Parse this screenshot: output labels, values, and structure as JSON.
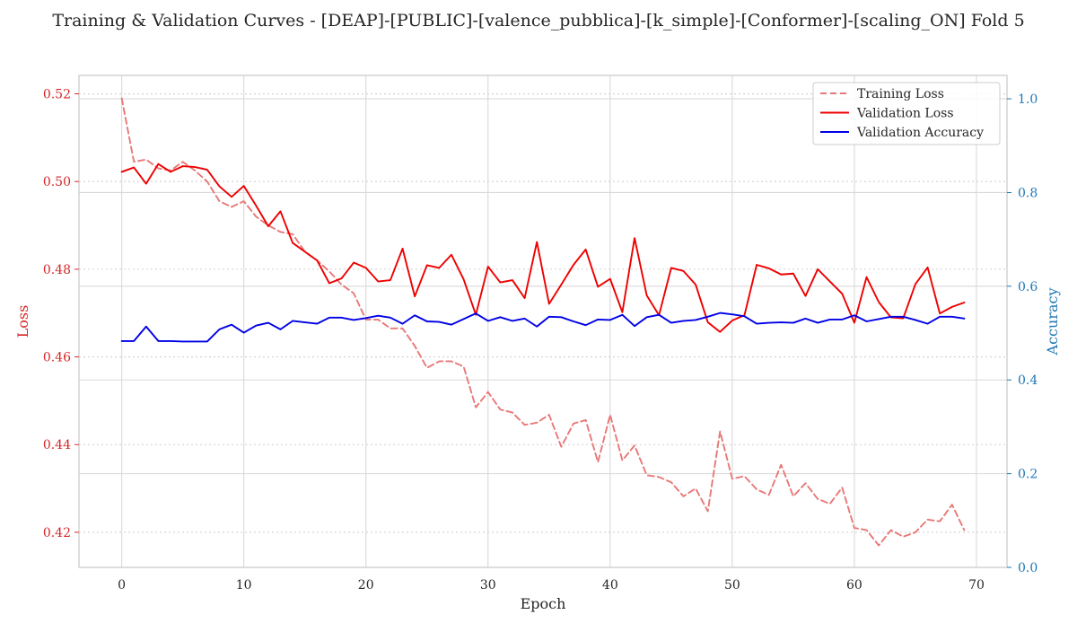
{
  "chart_data": {
    "type": "line",
    "title": "Training & Validation Curves - [DEAP]-[PUBLIC]-[valence_pubblica]-[k_simple]-[Conformer]-[scaling_ON] Fold 5",
    "xlabel": "Epoch",
    "ylabel": "Loss",
    "y2label": "Accuracy",
    "xlim": [
      -3.5,
      72.5
    ],
    "ylim": [
      0.412,
      0.5242
    ],
    "y2lim": [
      0.0,
      1.05
    ],
    "xticks": [
      "0",
      "10",
      "20",
      "30",
      "40",
      "50",
      "60",
      "70"
    ],
    "yticks": [
      "0.42",
      "0.44",
      "0.46",
      "0.48",
      "0.50",
      "0.52"
    ],
    "y2ticks": [
      "0.0",
      "0.2",
      "0.4",
      "0.6",
      "0.8",
      "1.0"
    ],
    "grid": true,
    "legend_position": "top-right",
    "colors": {
      "training_loss": "#e87878",
      "validation_loss": "#ee0000",
      "validation_accuracy": "#0000e6",
      "left_axis": "#d62728",
      "right_axis": "#1f77b4"
    },
    "x": [
      0,
      1,
      2,
      3,
      4,
      5,
      6,
      7,
      8,
      9,
      10,
      11,
      12,
      13,
      14,
      15,
      16,
      17,
      18,
      19,
      20,
      21,
      22,
      23,
      24,
      25,
      26,
      27,
      28,
      29,
      30,
      31,
      32,
      33,
      34,
      35,
      36,
      37,
      38,
      39,
      40,
      41,
      42,
      43,
      44,
      45,
      46,
      47,
      48,
      49,
      50,
      51,
      52,
      53,
      54,
      55,
      56,
      57,
      58,
      59,
      60,
      61,
      62,
      63,
      64,
      65,
      66,
      67,
      68,
      69
    ],
    "series": [
      {
        "name": "Training Loss",
        "axis": "left",
        "style": "dashed",
        "values": [
          0.519,
          0.5045,
          0.505,
          0.503,
          0.5025,
          0.5045,
          0.5025,
          0.5,
          0.4955,
          0.4942,
          0.4955,
          0.492,
          0.49,
          0.4885,
          0.488,
          0.484,
          0.482,
          0.4795,
          0.4765,
          0.4745,
          0.4685,
          0.4685,
          0.4665,
          0.4665,
          0.4625,
          0.4575,
          0.459,
          0.459,
          0.4578,
          0.4485,
          0.452,
          0.448,
          0.4473,
          0.4445,
          0.445,
          0.4468,
          0.4395,
          0.4448,
          0.4456,
          0.436,
          0.4468,
          0.4364,
          0.4398,
          0.433,
          0.4326,
          0.4314,
          0.4282,
          0.43,
          0.4248,
          0.443,
          0.4322,
          0.4328,
          0.4298,
          0.4285,
          0.4354,
          0.4282,
          0.4312,
          0.4276,
          0.4265,
          0.4302,
          0.421,
          0.4205,
          0.417,
          0.4205,
          0.419,
          0.42,
          0.4229,
          0.4225,
          0.4263,
          0.4205
        ]
      },
      {
        "name": "Validation Loss",
        "axis": "left",
        "style": "solid",
        "values": [
          0.5022,
          0.5032,
          0.4995,
          0.504,
          0.5022,
          0.5035,
          0.5033,
          0.5027,
          0.4989,
          0.4965,
          0.499,
          0.4945,
          0.4898,
          0.4932,
          0.486,
          0.484,
          0.482,
          0.4768,
          0.4779,
          0.4815,
          0.4803,
          0.4772,
          0.4775,
          0.4847,
          0.4738,
          0.4809,
          0.4803,
          0.4833,
          0.4777,
          0.4696,
          0.4806,
          0.477,
          0.4775,
          0.4734,
          0.4862,
          0.4721,
          0.4765,
          0.481,
          0.4845,
          0.476,
          0.4778,
          0.4702,
          0.4871,
          0.474,
          0.4695,
          0.4803,
          0.4796,
          0.4765,
          0.4679,
          0.4657,
          0.4683,
          0.4695,
          0.481,
          0.4802,
          0.4788,
          0.479,
          0.4739,
          0.48,
          0.4772,
          0.4744,
          0.4678,
          0.4782,
          0.4725,
          0.469,
          0.4688,
          0.4766,
          0.4804,
          0.4699,
          0.4714,
          0.4724
        ]
      },
      {
        "name": "Validation Accuracy",
        "axis": "right",
        "style": "solid",
        "values": [
          0.483,
          0.483,
          0.514,
          0.483,
          0.483,
          0.482,
          0.482,
          0.482,
          0.508,
          0.518,
          0.501,
          0.516,
          0.522,
          0.508,
          0.526,
          0.523,
          0.52,
          0.533,
          0.533,
          0.528,
          0.532,
          0.537,
          0.533,
          0.52,
          0.538,
          0.525,
          0.524,
          0.518,
          0.53,
          0.542,
          0.526,
          0.534,
          0.526,
          0.531,
          0.514,
          0.535,
          0.534,
          0.525,
          0.517,
          0.529,
          0.528,
          0.539,
          0.515,
          0.534,
          0.539,
          0.522,
          0.526,
          0.528,
          0.535,
          0.543,
          0.54,
          0.536,
          0.52,
          0.522,
          0.523,
          0.522,
          0.531,
          0.522,
          0.529,
          0.529,
          0.538,
          0.525,
          0.53,
          0.535,
          0.535,
          0.528,
          0.52,
          0.535,
          0.535,
          0.531
        ]
      }
    ]
  }
}
